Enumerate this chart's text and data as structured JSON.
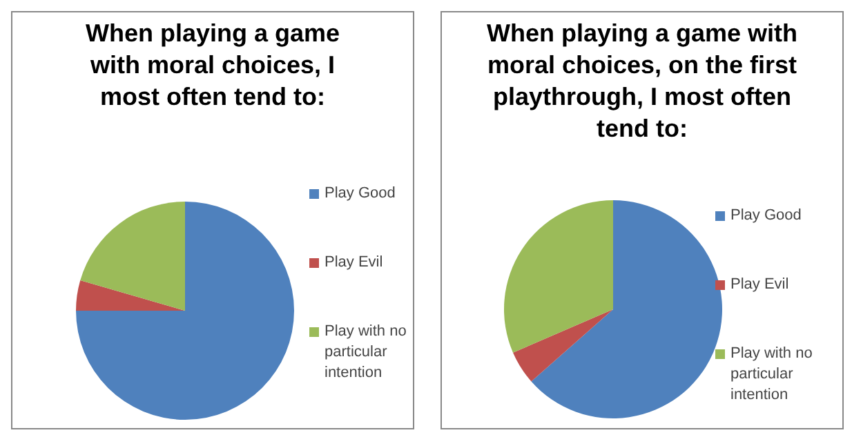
{
  "chart_data": [
    {
      "type": "pie",
      "title": "When playing a game with moral choices, I most often tend to:",
      "categories": [
        "Play Good",
        "Play Evil",
        "Play with no particular intention"
      ],
      "values": [
        75,
        4.5,
        20.5
      ],
      "colors": [
        "#4f81bd",
        "#c0504d",
        "#9bbb59"
      ],
      "legend": "right"
    },
    {
      "type": "pie",
      "title": "When playing a game with moral choices, on the first playthrough, I most often tend to:",
      "categories": [
        "Play Good",
        "Play Evil",
        "Play with no particular intention"
      ],
      "values": [
        63.5,
        5,
        31.5
      ],
      "colors": [
        "#4f81bd",
        "#c0504d",
        "#9bbb59"
      ],
      "legend": "right"
    }
  ]
}
